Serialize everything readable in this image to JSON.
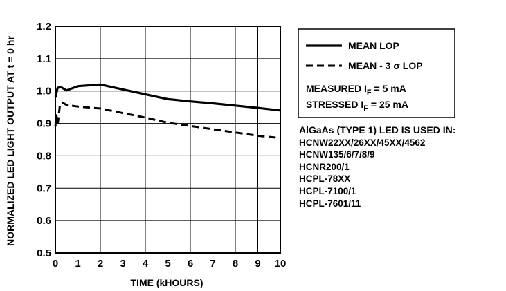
{
  "chart_data": {
    "type": "line",
    "xlabel": "TIME (kHOURS)",
    "ylabel": "NORMALIZED LED LIGHT OUTPUT AT t = 0 hr",
    "xlim": [
      0,
      10
    ],
    "ylim": [
      0.5,
      1.2
    ],
    "x_ticks": [
      0,
      1,
      2,
      3,
      4,
      5,
      6,
      7,
      8,
      9,
      10
    ],
    "y_ticks": [
      0.5,
      0.6,
      0.7,
      0.8,
      0.9,
      1.0,
      1.1,
      1.2
    ],
    "x_tick_labels": [
      "0",
      "1",
      "2",
      "3",
      "4",
      "5",
      "6",
      "7",
      "8",
      "9",
      "10"
    ],
    "y_tick_labels": [
      "0.5",
      "0.6",
      "0.7",
      "0.8",
      "0.9",
      "1.0",
      "1.1",
      "1.2"
    ],
    "grid": true,
    "legend_position": "right",
    "series": [
      {
        "name": "MEAN LOP",
        "style": "solid",
        "x": [
          0,
          0.1,
          0.25,
          0.5,
          1,
          2,
          3,
          4,
          5,
          6,
          7,
          8,
          9,
          10
        ],
        "y": [
          0.98,
          1.01,
          1.012,
          1.002,
          1.015,
          1.02,
          1.005,
          0.99,
          0.975,
          0.968,
          0.962,
          0.955,
          0.948,
          0.94
        ]
      },
      {
        "name": "MEAN - 3 σ LOP",
        "style": "dashed",
        "x": [
          0,
          0.05,
          0.1,
          0.2,
          0.3,
          0.5,
          1,
          2,
          3,
          4,
          5,
          6,
          7,
          8,
          9,
          10
        ],
        "y": [
          0.89,
          0.925,
          0.895,
          0.955,
          0.965,
          0.957,
          0.952,
          0.946,
          0.932,
          0.918,
          0.902,
          0.892,
          0.882,
          0.872,
          0.862,
          0.855
        ]
      }
    ]
  },
  "legend": {
    "mean_label": "MEAN LOP",
    "sigma_label": "MEAN - 3 σ LOP",
    "measured_prefix": "MEASURED I",
    "measured_sub": "F",
    "measured_value": " = 5 mA",
    "stressed_prefix": "STRESSED I",
    "stressed_sub": "F",
    "stressed_value": " = 25 mA"
  },
  "notes": {
    "heading": "AlGaAs (TYPE 1) LED IS USED IN:",
    "parts": [
      "HCNW22XX/26XX/45XX/4562",
      "HCNW135/6/7/8/9",
      "HCNR200/1",
      "HCPL-78XX",
      "HCPL-7100/1",
      "HCPL-7601/11"
    ]
  }
}
